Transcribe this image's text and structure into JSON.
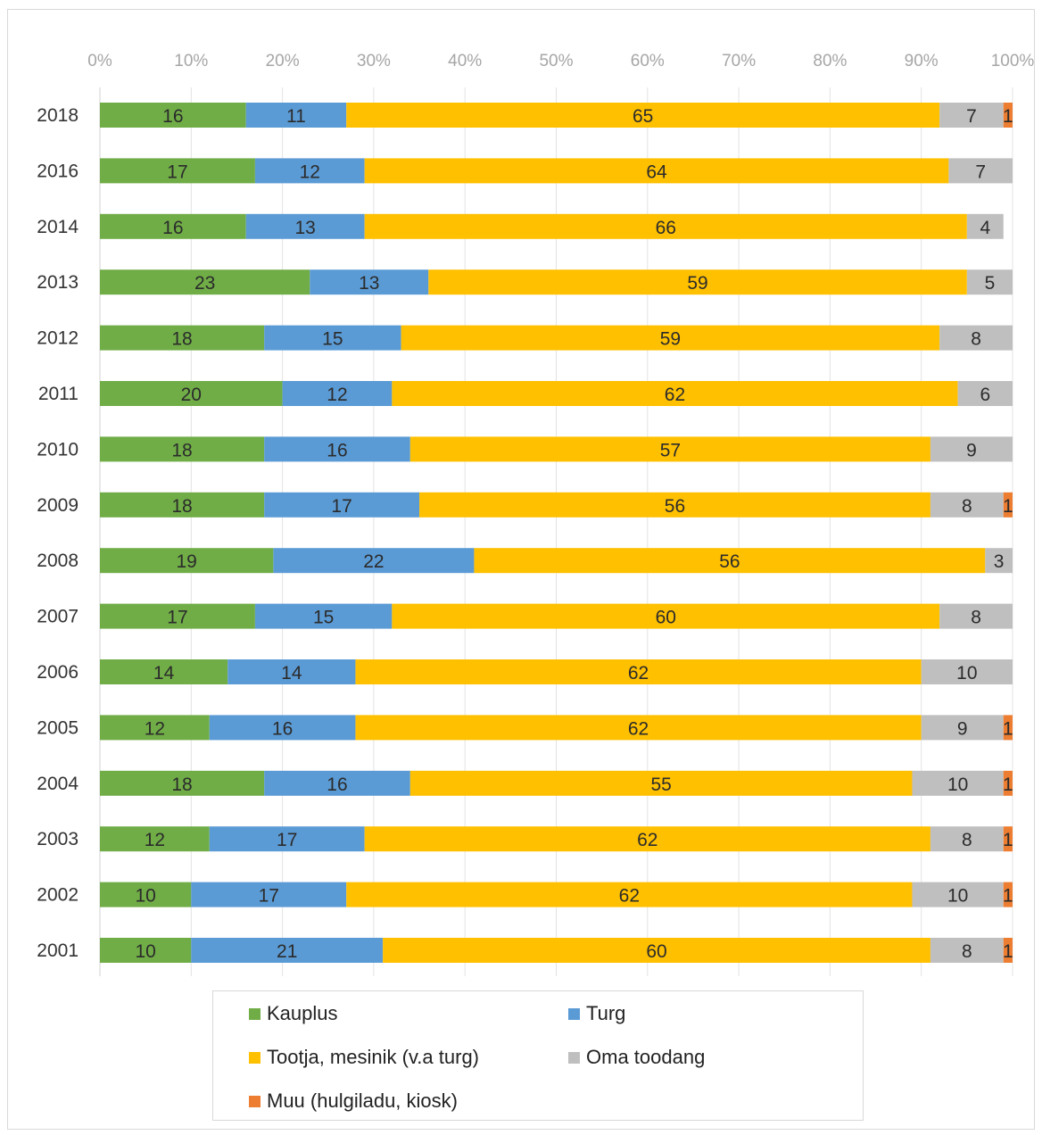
{
  "chart_data": {
    "type": "bar",
    "orientation": "horizontal",
    "stacked": true,
    "percent_stacked": true,
    "title": "",
    "xlabel": "",
    "ylabel": "",
    "xlim": [
      0,
      100
    ],
    "x_ticks": [
      "0%",
      "10%",
      "20%",
      "30%",
      "40%",
      "50%",
      "60%",
      "70%",
      "80%",
      "90%",
      "100%"
    ],
    "x_axis_position": "top",
    "grid": true,
    "legend_position": "bottom",
    "categories": [
      "2018",
      "2016",
      "2014",
      "2013",
      "2012",
      "2011",
      "2010",
      "2009",
      "2008",
      "2007",
      "2006",
      "2005",
      "2004",
      "2003",
      "2002",
      "2001"
    ],
    "series": [
      {
        "name": "Kauplus",
        "color": "#70ad47",
        "values": [
          16,
          17,
          16,
          23,
          18,
          20,
          18,
          18,
          19,
          17,
          14,
          12,
          18,
          12,
          10,
          10
        ]
      },
      {
        "name": "Turg",
        "color": "#5b9bd5",
        "values": [
          11,
          12,
          13,
          13,
          15,
          12,
          16,
          17,
          22,
          15,
          14,
          16,
          16,
          17,
          17,
          21
        ]
      },
      {
        "name": "Tootja, mesinik (v.a turg)",
        "color": "#ffc000",
        "values": [
          65,
          64,
          66,
          59,
          59,
          62,
          57,
          56,
          56,
          60,
          62,
          62,
          55,
          62,
          62,
          60
        ]
      },
      {
        "name": "Oma toodang",
        "color": "#bfbfbf",
        "values": [
          7,
          7,
          4,
          5,
          8,
          6,
          9,
          8,
          3,
          8,
          10,
          9,
          10,
          8,
          10,
          8
        ]
      },
      {
        "name": "Muu (hulgiladu, kiosk)",
        "color": "#ed7d31",
        "values": [
          1,
          0,
          0,
          0,
          0,
          0,
          0,
          1,
          0,
          0,
          0,
          1,
          1,
          1,
          1,
          1
        ]
      }
    ]
  }
}
